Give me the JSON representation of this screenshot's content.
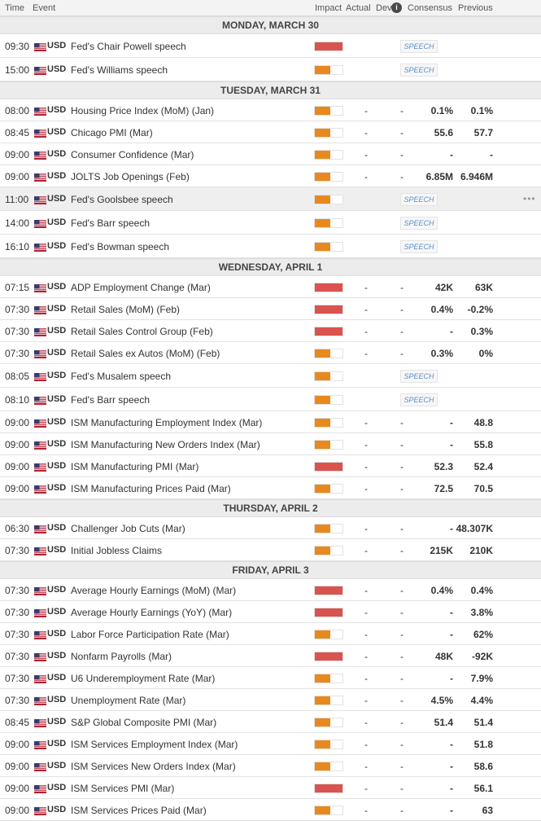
{
  "header": {
    "time": "Time",
    "event": "Event",
    "impact": "Impact",
    "actual": "Actual",
    "dev": "Dev",
    "info_icon": "i",
    "consensus": "Consensus",
    "previous": "Previous"
  },
  "colors": {
    "high_impact": "#d9534f",
    "medium_impact": "#e8891f",
    "speech_text": "#5a8fc7"
  },
  "days": [
    {
      "label": "MONDAY, MARCH 30",
      "events": [
        {
          "time": "09:30",
          "currency": "USD",
          "name": "Fed's Chair Powell speech",
          "impact": "high",
          "tag": "SPEECH"
        },
        {
          "time": "15:00",
          "currency": "USD",
          "name": "Fed's Williams speech",
          "impact": "medium",
          "tag": "SPEECH"
        }
      ]
    },
    {
      "label": "TUESDAY, MARCH 31",
      "events": [
        {
          "time": "08:00",
          "currency": "USD",
          "name": "Housing Price Index (MoM) (Jan)",
          "impact": "medium",
          "actual": "-",
          "dev": "-",
          "consensus": "0.1%",
          "previous": "0.1%"
        },
        {
          "time": "08:45",
          "currency": "USD",
          "name": "Chicago PMI (Mar)",
          "impact": "medium",
          "actual": "-",
          "dev": "-",
          "consensus": "55.6",
          "previous": "57.7"
        },
        {
          "time": "09:00",
          "currency": "USD",
          "name": "Consumer Confidence (Mar)",
          "impact": "medium",
          "actual": "-",
          "dev": "-",
          "consensus": "-",
          "previous": "-"
        },
        {
          "time": "09:00",
          "currency": "USD",
          "name": "JOLTS Job Openings (Feb)",
          "impact": "medium",
          "actual": "-",
          "dev": "-",
          "consensus": "6.85M",
          "previous": "6.946M"
        },
        {
          "time": "11:00",
          "currency": "USD",
          "name": "Fed's Goolsbee speech",
          "impact": "medium",
          "tag": "SPEECH",
          "highlighted": true,
          "more": "•••"
        },
        {
          "time": "14:00",
          "currency": "USD",
          "name": "Fed's Barr speech",
          "impact": "medium",
          "tag": "SPEECH"
        },
        {
          "time": "16:10",
          "currency": "USD",
          "name": "Fed's Bowman speech",
          "impact": "medium",
          "tag": "SPEECH"
        }
      ]
    },
    {
      "label": "WEDNESDAY, APRIL 1",
      "events": [
        {
          "time": "07:15",
          "currency": "USD",
          "name": "ADP Employment Change (Mar)",
          "impact": "high",
          "actual": "-",
          "dev": "-",
          "consensus": "42K",
          "previous": "63K"
        },
        {
          "time": "07:30",
          "currency": "USD",
          "name": "Retail Sales (MoM) (Feb)",
          "impact": "high",
          "actual": "-",
          "dev": "-",
          "consensus": "0.4%",
          "previous": "-0.2%"
        },
        {
          "time": "07:30",
          "currency": "USD",
          "name": "Retail Sales Control Group (Feb)",
          "impact": "high",
          "actual": "-",
          "dev": "-",
          "consensus": "-",
          "previous": "0.3%"
        },
        {
          "time": "07:30",
          "currency": "USD",
          "name": "Retail Sales ex Autos (MoM) (Feb)",
          "impact": "medium",
          "actual": "-",
          "dev": "-",
          "consensus": "0.3%",
          "previous": "0%"
        },
        {
          "time": "08:05",
          "currency": "USD",
          "name": "Fed's Musalem speech",
          "impact": "medium",
          "tag": "SPEECH"
        },
        {
          "time": "08:10",
          "currency": "USD",
          "name": "Fed's Barr speech",
          "impact": "medium",
          "tag": "SPEECH"
        },
        {
          "time": "09:00",
          "currency": "USD",
          "name": "ISM Manufacturing Employment Index (Mar)",
          "impact": "medium",
          "actual": "-",
          "dev": "-",
          "consensus": "-",
          "previous": "48.8"
        },
        {
          "time": "09:00",
          "currency": "USD",
          "name": "ISM Manufacturing New Orders Index (Mar)",
          "impact": "medium",
          "actual": "-",
          "dev": "-",
          "consensus": "-",
          "previous": "55.8"
        },
        {
          "time": "09:00",
          "currency": "USD",
          "name": "ISM Manufacturing PMI (Mar)",
          "impact": "high",
          "actual": "-",
          "dev": "-",
          "consensus": "52.3",
          "previous": "52.4"
        },
        {
          "time": "09:00",
          "currency": "USD",
          "name": "ISM Manufacturing Prices Paid (Mar)",
          "impact": "medium",
          "actual": "-",
          "dev": "-",
          "consensus": "72.5",
          "previous": "70.5"
        }
      ]
    },
    {
      "label": "THURSDAY, APRIL 2",
      "events": [
        {
          "time": "06:30",
          "currency": "USD",
          "name": "Challenger Job Cuts (Mar)",
          "impact": "medium",
          "actual": "-",
          "dev": "-",
          "consensus": "-",
          "previous": "48.307K"
        },
        {
          "time": "07:30",
          "currency": "USD",
          "name": "Initial Jobless Claims",
          "impact": "medium",
          "actual": "-",
          "dev": "-",
          "consensus": "215K",
          "previous": "210K"
        }
      ]
    },
    {
      "label": "FRIDAY, APRIL 3",
      "events": [
        {
          "time": "07:30",
          "currency": "USD",
          "name": "Average Hourly Earnings (MoM) (Mar)",
          "impact": "high",
          "actual": "-",
          "dev": "-",
          "consensus": "0.4%",
          "previous": "0.4%"
        },
        {
          "time": "07:30",
          "currency": "USD",
          "name": "Average Hourly Earnings (YoY) (Mar)",
          "impact": "high",
          "actual": "-",
          "dev": "-",
          "consensus": "-",
          "previous": "3.8%"
        },
        {
          "time": "07:30",
          "currency": "USD",
          "name": "Labor Force Participation Rate (Mar)",
          "impact": "medium",
          "actual": "-",
          "dev": "-",
          "consensus": "-",
          "previous": "62%"
        },
        {
          "time": "07:30",
          "currency": "USD",
          "name": "Nonfarm Payrolls (Mar)",
          "impact": "high",
          "actual": "-",
          "dev": "-",
          "consensus": "48K",
          "previous": "-92K"
        },
        {
          "time": "07:30",
          "currency": "USD",
          "name": "U6 Underemployment Rate (Mar)",
          "impact": "medium",
          "actual": "-",
          "dev": "-",
          "consensus": "-",
          "previous": "7.9%"
        },
        {
          "time": "07:30",
          "currency": "USD",
          "name": "Unemployment Rate (Mar)",
          "impact": "medium",
          "actual": "-",
          "dev": "-",
          "consensus": "4.5%",
          "previous": "4.4%"
        },
        {
          "time": "08:45",
          "currency": "USD",
          "name": "S&P Global Composite PMI (Mar)",
          "impact": "medium",
          "actual": "-",
          "dev": "-",
          "consensus": "51.4",
          "previous": "51.4"
        },
        {
          "time": "09:00",
          "currency": "USD",
          "name": "ISM Services Employment Index (Mar)",
          "impact": "medium",
          "actual": "-",
          "dev": "-",
          "consensus": "-",
          "previous": "51.8"
        },
        {
          "time": "09:00",
          "currency": "USD",
          "name": "ISM Services New Orders Index (Mar)",
          "impact": "medium",
          "actual": "-",
          "dev": "-",
          "consensus": "-",
          "previous": "58.6"
        },
        {
          "time": "09:00",
          "currency": "USD",
          "name": "ISM Services PMI (Mar)",
          "impact": "high",
          "actual": "-",
          "dev": "-",
          "consensus": "-",
          "previous": "56.1"
        },
        {
          "time": "09:00",
          "currency": "USD",
          "name": "ISM Services Prices Paid (Mar)",
          "impact": "medium",
          "actual": "-",
          "dev": "-",
          "consensus": "-",
          "previous": "63"
        }
      ]
    }
  ]
}
